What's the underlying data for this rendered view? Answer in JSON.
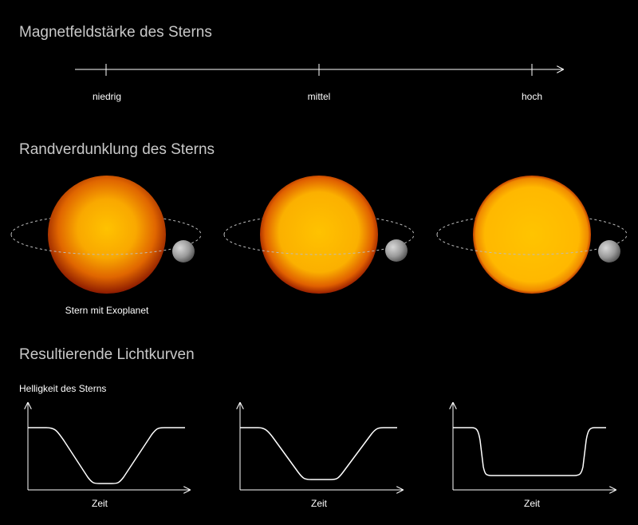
{
  "headings": {
    "magnetic": "Magnetfeldstärke des Sterns",
    "limb": "Randverdunklung des Sterns",
    "lightcurves": "Resultierende Lichtkurven"
  },
  "scale": {
    "low": "niedrig",
    "mid": "mittel",
    "high": "hoch"
  },
  "star_caption": "Stern mit Exoplanet",
  "y_axis_label": "Helligkeit des Sterns",
  "x_axis_label": "Zeit",
  "colors": {
    "background": "#000000",
    "star_center": "#ffc000",
    "star_edge": "#8a1a00",
    "planet": "#a0a0a0",
    "lines": "#ffffff",
    "heading": "#c8c8c8"
  }
}
